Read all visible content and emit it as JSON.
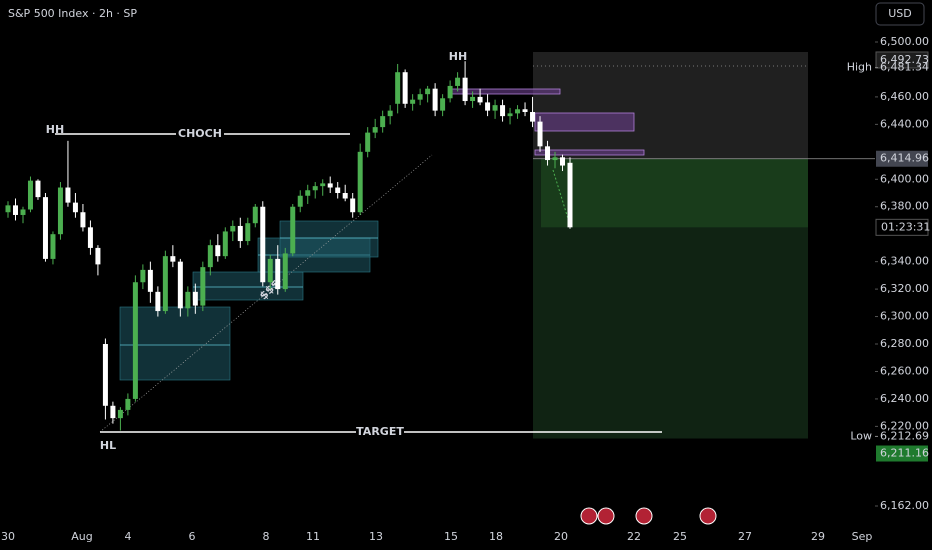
{
  "header": {
    "title": "S&P 500 Index · 2h · SP",
    "currency": "USD"
  },
  "chart_data": {
    "type": "candlestick",
    "ylim": [
      6162,
      6500
    ],
    "yticks": [
      {
        "value": 6500,
        "label": "6,500.00"
      },
      {
        "value": 6460,
        "label": "6,460.00"
      },
      {
        "value": 6440,
        "label": "6,440.00"
      },
      {
        "value": 6400,
        "label": "6,400.00"
      },
      {
        "value": 6380,
        "label": "6,380.00"
      },
      {
        "value": 6340,
        "label": "6,340.00"
      },
      {
        "value": 6320,
        "label": "6,320.00"
      },
      {
        "value": 6300,
        "label": "6,300.00"
      },
      {
        "value": 6280,
        "label": "6,280.00"
      },
      {
        "value": 6260,
        "label": "6,260.00"
      },
      {
        "value": 6240,
        "label": "6,240.00"
      },
      {
        "value": 6220,
        "label": "6,220.00"
      },
      {
        "value": 6162,
        "label": "6,162.00"
      }
    ],
    "x_labels": [
      "30",
      "Aug",
      "4",
      "6",
      "8",
      "11",
      "13",
      "15",
      "18",
      "20",
      "22",
      "25",
      "27",
      "29",
      "Sep"
    ],
    "up_color": "#4caf50",
    "down_color": "#ffffff",
    "ohlc": [
      [
        6376,
        6384,
        6372,
        6381
      ],
      [
        6381,
        6386,
        6370,
        6374
      ],
      [
        6374,
        6380,
        6368,
        6378
      ],
      [
        6378,
        6402,
        6376,
        6399
      ],
      [
        6399,
        6400,
        6385,
        6387
      ],
      [
        6387,
        6390,
        6340,
        6342
      ],
      [
        6342,
        6362,
        6338,
        6360
      ],
      [
        6360,
        6398,
        6356,
        6394
      ],
      [
        6394,
        6428,
        6380,
        6383
      ],
      [
        6383,
        6390,
        6372,
        6376
      ],
      [
        6376,
        6382,
        6362,
        6365
      ],
      [
        6365,
        6370,
        6345,
        6350
      ],
      [
        6350,
        6352,
        6330,
        6338
      ],
      [
        6280,
        6284,
        6225,
        6235
      ],
      [
        6235,
        6238,
        6222,
        6226
      ],
      [
        6226,
        6234,
        6217,
        6232
      ],
      [
        6232,
        6244,
        6228,
        6240
      ],
      [
        6240,
        6330,
        6238,
        6325
      ],
      [
        6325,
        6338,
        6320,
        6334
      ],
      [
        6334,
        6340,
        6310,
        6318
      ],
      [
        6318,
        6322,
        6300,
        6304
      ],
      [
        6304,
        6348,
        6302,
        6344
      ],
      [
        6344,
        6352,
        6336,
        6340
      ],
      [
        6340,
        6342,
        6300,
        6306
      ],
      [
        6306,
        6322,
        6300,
        6318
      ],
      [
        6318,
        6324,
        6302,
        6308
      ],
      [
        6308,
        6340,
        6304,
        6336
      ],
      [
        6336,
        6356,
        6330,
        6352
      ],
      [
        6352,
        6360,
        6340,
        6344
      ],
      [
        6344,
        6365,
        6342,
        6362
      ],
      [
        6362,
        6370,
        6355,
        6366
      ],
      [
        6366,
        6372,
        6350,
        6355
      ],
      [
        6355,
        6372,
        6352,
        6368
      ],
      [
        6368,
        6382,
        6365,
        6380
      ],
      [
        6380,
        6384,
        6322,
        6325
      ],
      [
        6325,
        6345,
        6320,
        6342
      ],
      [
        6342,
        6352,
        6316,
        6320
      ],
      [
        6320,
        6350,
        6318,
        6346
      ],
      [
        6346,
        6382,
        6344,
        6380
      ],
      [
        6380,
        6392,
        6376,
        6388
      ],
      [
        6388,
        6396,
        6382,
        6392
      ],
      [
        6392,
        6398,
        6386,
        6395
      ],
      [
        6395,
        6400,
        6388,
        6397
      ],
      [
        6397,
        6402,
        6390,
        6394
      ],
      [
        6394,
        6398,
        6386,
        6390
      ],
      [
        6390,
        6396,
        6384,
        6386
      ],
      [
        6386,
        6390,
        6372,
        6376
      ],
      [
        6376,
        6426,
        6374,
        6420
      ],
      [
        6420,
        6438,
        6416,
        6434
      ],
      [
        6434,
        6444,
        6430,
        6438
      ],
      [
        6438,
        6450,
        6434,
        6446
      ],
      [
        6446,
        6454,
        6440,
        6450
      ],
      [
        6455,
        6484,
        6448,
        6478
      ],
      [
        6478,
        6480,
        6452,
        6455
      ],
      [
        6455,
        6462,
        6450,
        6458
      ],
      [
        6458,
        6466,
        6454,
        6462
      ],
      [
        6462,
        6468,
        6456,
        6466
      ],
      [
        6466,
        6470,
        6446,
        6450
      ],
      [
        6450,
        6462,
        6446,
        6459
      ],
      [
        6459,
        6472,
        6456,
        6468
      ],
      [
        6468,
        6478,
        6464,
        6474
      ],
      [
        6474,
        6486,
        6454,
        6457
      ],
      [
        6457,
        6464,
        6452,
        6460
      ],
      [
        6460,
        6466,
        6454,
        6456
      ],
      [
        6456,
        6462,
        6446,
        6450
      ],
      [
        6450,
        6458,
        6444,
        6454
      ],
      [
        6454,
        6458,
        6442,
        6446
      ],
      [
        6446,
        6452,
        6440,
        6448
      ],
      [
        6448,
        6454,
        6444,
        6451
      ],
      [
        6451,
        6456,
        6446,
        6449
      ],
      [
        6449,
        6460,
        6438,
        6442
      ],
      [
        6442,
        6446,
        6420,
        6424
      ],
      [
        6424,
        6428,
        6410,
        6414
      ],
      [
        6414,
        6420,
        6408,
        6416
      ],
      [
        6416,
        6418,
        6406,
        6410
      ],
      [
        6412,
        6416,
        6364,
        6365
      ]
    ],
    "price_markers": [
      {
        "value": 6492.73,
        "label": "6,492.73"
      },
      {
        "name": "High",
        "value": 6481.34,
        "label": "6,481.34"
      },
      {
        "value": 6414.96,
        "label": "6,414.96"
      },
      {
        "name": "Low",
        "value": 6212.69,
        "label": "6,212.69"
      },
      {
        "value": 6211.16,
        "label": "6,211.16"
      }
    ],
    "countdown": "01:23:31",
    "annotations": [
      "HH",
      "HH",
      "HL",
      "CHOCH",
      "TARGET",
      "$$$"
    ]
  }
}
